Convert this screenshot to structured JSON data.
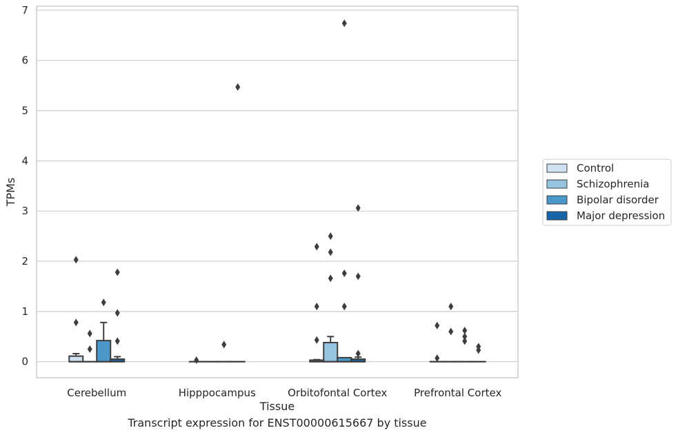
{
  "chart_data": {
    "type": "box",
    "title": "",
    "xlabel": "Tissue",
    "ylabel": "TPMs",
    "caption": "Transcript expression for ENST00000615667 by tissue",
    "ylim": [
      -0.32,
      7.08
    ],
    "yticks": [
      "0",
      "1",
      "2",
      "3",
      "4",
      "5",
      "6",
      "7"
    ],
    "grid": true,
    "legend_position": "right",
    "categories": [
      "Cerebellum",
      "Hipppocampus",
      "Orbitofontal Cortex",
      "Prefrontal Cortex"
    ],
    "series": [
      {
        "name": "Control",
        "color": "#d0e1f2",
        "boxes": [
          {
            "q1": 0,
            "median": 0,
            "q3": 0.11,
            "whisker_low": 0,
            "whisker_high": 0.16,
            "outliers": [
              0.78,
              2.03
            ]
          },
          {
            "q1": 0,
            "median": 0,
            "q3": 0,
            "whisker_low": 0,
            "whisker_high": 0,
            "outliers": [
              0.03
            ]
          },
          {
            "q1": 0,
            "median": 0,
            "q3": 0.03,
            "whisker_low": 0,
            "whisker_high": 0.04,
            "outliers": [
              0.43,
              1.1,
              2.29
            ]
          },
          {
            "q1": 0,
            "median": 0,
            "q3": 0,
            "whisker_low": 0,
            "whisker_high": 0,
            "outliers": [
              0.07,
              0.72
            ]
          }
        ]
      },
      {
        "name": "Schizophrenia",
        "color": "#94c4df",
        "boxes": [
          {
            "q1": 0,
            "median": 0,
            "q3": 0,
            "whisker_low": 0,
            "whisker_high": 0,
            "outliers": [
              0.25,
              0.56
            ]
          },
          {
            "q1": 0,
            "median": 0,
            "q3": 0,
            "whisker_low": 0,
            "whisker_high": 0,
            "outliers": []
          },
          {
            "q1": 0,
            "median": 0,
            "q3": 0.38,
            "whisker_low": 0,
            "whisker_high": 0.5,
            "outliers": [
              1.66,
              2.18,
              2.5
            ]
          },
          {
            "q1": 0,
            "median": 0,
            "q3": 0,
            "whisker_low": 0,
            "whisker_high": 0,
            "outliers": [
              0.6,
              1.1
            ]
          }
        ]
      },
      {
        "name": "Bipolar disorder",
        "color": "#4a98c9",
        "boxes": [
          {
            "q1": 0,
            "median": 0,
            "q3": 0.42,
            "whisker_low": 0,
            "whisker_high": 0.78,
            "outliers": [
              1.18
            ]
          },
          {
            "q1": 0,
            "median": 0,
            "q3": 0,
            "whisker_low": 0,
            "whisker_high": 0,
            "outliers": [
              0.34
            ]
          },
          {
            "q1": 0,
            "median": 0,
            "q3": 0.08,
            "whisker_low": 0,
            "whisker_high": 0.08,
            "outliers": [
              1.1,
              1.76,
              6.74
            ]
          },
          {
            "q1": 0,
            "median": 0,
            "q3": 0,
            "whisker_low": 0,
            "whisker_high": 0,
            "outliers": [
              0.41,
              0.5,
              0.62
            ]
          }
        ]
      },
      {
        "name": "Major depression",
        "color": "#1764ab",
        "boxes": [
          {
            "q1": 0,
            "median": 0,
            "q3": 0.05,
            "whisker_low": 0,
            "whisker_high": 0.1,
            "outliers": [
              0.41,
              0.97,
              1.78
            ]
          },
          {
            "q1": 0,
            "median": 0,
            "q3": 0,
            "whisker_low": 0,
            "whisker_high": 0,
            "outliers": [
              5.47
            ]
          },
          {
            "q1": 0,
            "median": 0,
            "q3": 0.05,
            "whisker_low": 0,
            "whisker_high": 0.09,
            "outliers": [
              0.16,
              1.7,
              3.06
            ]
          },
          {
            "q1": 0,
            "median": 0,
            "q3": 0,
            "whisker_low": 0,
            "whisker_high": 0,
            "outliers": [
              0.23,
              0.3
            ]
          }
        ]
      }
    ]
  }
}
